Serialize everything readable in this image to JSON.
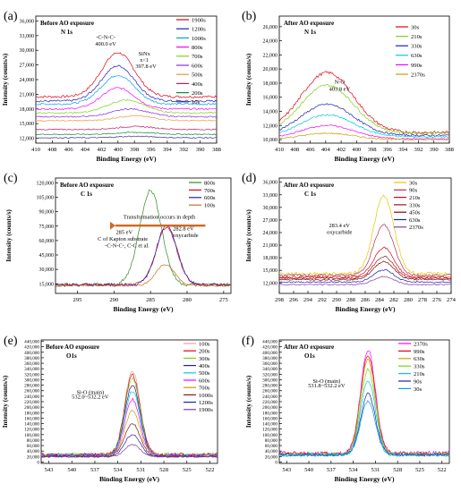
{
  "chart_data": [
    {
      "panel": "(a)",
      "type": "line",
      "annotation_title": "Before AO exposure",
      "annotation_sub": "N 1s",
      "xlabel": "Binding Energy (eV)",
      "ylabel": "Intensity (counts/s)",
      "xlim": [
        410,
        388
      ],
      "ylim": [
        11000,
        37000
      ],
      "xticks": [
        410,
        408,
        406,
        404,
        402,
        400,
        398,
        396,
        394,
        392,
        390,
        388
      ],
      "yticks": [
        12000,
        15000,
        18000,
        21000,
        24000,
        27000,
        30000,
        33000,
        36000
      ],
      "ytick_labels": [
        "12,000",
        "15,000",
        "18,000",
        "21,000",
        "24,000",
        "27,000",
        "30,000",
        "33,000",
        "36,000"
      ],
      "annotations": [
        {
          "text": "-C-N-C-",
          "x": 401.5,
          "y": 32300
        },
        {
          "text": "400.0 eV",
          "x": 401.5,
          "y": 31000
        },
        {
          "text": "SiNx",
          "x": 396.8,
          "y": 28900
        },
        {
          "text": "x<1",
          "x": 396.8,
          "y": 27700
        },
        {
          "text": "397.8 eV",
          "x": 396.6,
          "y": 26400
        }
      ],
      "series": [
        {
          "name": "1900s",
          "color": "#e60012",
          "baseline": 20500,
          "peak_x": 400.0,
          "amplitude": 9000,
          "width": 2.0
        },
        {
          "name": "1200s",
          "color": "#1f1fb4",
          "baseline": 19600,
          "peak_x": 400.0,
          "amplitude": 7200,
          "width": 2.0
        },
        {
          "name": "1000s",
          "color": "#00a0e9",
          "baseline": 19000,
          "peak_x": 400.0,
          "amplitude": 5900,
          "width": 2.0
        },
        {
          "name": "800s",
          "color": "#ff00ff",
          "baseline": 18000,
          "peak_x": 400.0,
          "amplitude": 4300,
          "width": 2.0
        },
        {
          "name": "700s",
          "color": "#7cd318",
          "baseline": 17200,
          "peak_x": 399.0,
          "amplitude": 2600,
          "width": 2.2
        },
        {
          "name": "600s",
          "color": "#8a2be2",
          "baseline": 16400,
          "peak_x": 398.5,
          "amplitude": 1600,
          "width": 2.2
        },
        {
          "name": "500s",
          "color": "#e89a3c",
          "baseline": 15600,
          "peak_x": 398.0,
          "amplitude": 1000,
          "width": 2.2
        },
        {
          "name": "400s",
          "color": "#c2185b",
          "baseline": 13800,
          "peak_x": 397.8,
          "amplitude": 600,
          "width": 2.2
        },
        {
          "name": "200s",
          "color": "#0d8c3a",
          "baseline": 12800,
          "peak_x": 397.8,
          "amplitude": 400,
          "width": 2.2
        },
        {
          "name": "10s",
          "color": "#4a2a8c",
          "baseline": 12100,
          "peak_x": 397.8,
          "amplitude": 300,
          "width": 2.2
        }
      ]
    },
    {
      "panel": "(b)",
      "type": "line",
      "annotation_title": "After AO exposure",
      "annotation_sub": "N 1s",
      "xlabel": "Binding Energy (eV)",
      "ylabel": "Intensity (counts/s)",
      "xlim": [
        410,
        388
      ],
      "ylim": [
        9500,
        27500
      ],
      "xticks": [
        410,
        408,
        406,
        404,
        402,
        400,
        398,
        396,
        394,
        392,
        390,
        388
      ],
      "yticks": [
        10000,
        12000,
        14000,
        16000,
        18000,
        20000,
        22000,
        24000,
        26000
      ],
      "ytick_labels": [
        "10,000",
        "12,000",
        "14,000",
        "16,000",
        "18,000",
        "20,000",
        "22,000",
        "24,000",
        "26,000"
      ],
      "annotations": [
        {
          "text": "N-O",
          "x": 402.2,
          "y": 17900
        },
        {
          "text": "403.8 eV",
          "x": 402.2,
          "y": 16900
        }
      ],
      "series": [
        {
          "name": "30s",
          "color": "#e60012",
          "baseline": 11000,
          "peak_x": 403.8,
          "amplitude": 8500,
          "width": 3.4
        },
        {
          "name": "210s",
          "color": "#7cd318",
          "baseline": 10900,
          "peak_x": 403.8,
          "amplitude": 6800,
          "width": 3.4
        },
        {
          "name": "330s",
          "color": "#1f1fb4",
          "baseline": 10600,
          "peak_x": 403.8,
          "amplitude": 4400,
          "width": 3.4
        },
        {
          "name": "630s",
          "color": "#00c8e6",
          "baseline": 10400,
          "peak_x": 403.8,
          "amplitude": 3100,
          "width": 3.4
        },
        {
          "name": "990s",
          "color": "#ff00ff",
          "baseline": 10100,
          "peak_x": 403.8,
          "amplitude": 1900,
          "width": 3.4
        },
        {
          "name": "2370s",
          "color": "#c8a000",
          "baseline": 10000,
          "peak_x": 403.8,
          "amplitude": 900,
          "width": 3.4
        }
      ]
    },
    {
      "panel": "(c)",
      "type": "line",
      "annotation_title": "Before AO exposure",
      "annotation_sub": "C 1s",
      "xlabel": "Binding Energy (eV)",
      "ylabel": "Intensity (counts/s)",
      "xlim": [
        298,
        274
      ],
      "ylim": [
        5000,
        125000
      ],
      "xticks": [
        295,
        290,
        285,
        280,
        275
      ],
      "yticks": [
        15000,
        30000,
        45000,
        60000,
        75000,
        90000,
        105000,
        120000
      ],
      "ytick_labels": [
        "15,000",
        "30,000",
        "45,000",
        "60,000",
        "75,000",
        "90,000",
        "105,000",
        "120,000"
      ],
      "annotations": [
        {
          "text": "Transformation occurs in depth",
          "x": 283.8,
          "y": 82500
        },
        {
          "text": "285 eV",
          "x": 288.6,
          "y": 67000
        },
        {
          "text": "C of Kapton substrate",
          "x": 288.8,
          "y": 60000
        },
        {
          "text": "-C-N-C-, C-C et al.",
          "x": 288.2,
          "y": 53000
        },
        {
          "text": "282.8 eV",
          "x": 280.5,
          "y": 70500
        },
        {
          "text": "oxycarbide",
          "x": 280.2,
          "y": 63500
        }
      ],
      "series": [
        {
          "name": "800s",
          "color": "#2e8b22",
          "baseline": 14000,
          "peak_x": 285.0,
          "amplitude": 98000,
          "width": 1.5
        },
        {
          "name": "700s",
          "color": "#e60012",
          "baseline": 14000,
          "peak_x": 282.8,
          "amplitude": 60000,
          "width": 1.4
        },
        {
          "name": "600s",
          "color": "#1f1fb4",
          "baseline": 14000,
          "peak_x": 282.8,
          "amplitude": 62000,
          "width": 1.4
        },
        {
          "name": "100s",
          "color": "#d2691e",
          "baseline": 13000,
          "peak_x": 283.0,
          "amplitude": 22000,
          "width": 1.3
        }
      ]
    },
    {
      "panel": "(d)",
      "type": "line",
      "annotation_title": "After AO exposure",
      "annotation_sub": "C 1s",
      "xlabel": "Binding Energy (eV)",
      "ylabel": "Intensity (counts/s)",
      "xlim": [
        298,
        274
      ],
      "ylim": [
        9500,
        37000
      ],
      "xticks": [
        298,
        296,
        294,
        292,
        290,
        288,
        286,
        284,
        282,
        280,
        278,
        276,
        274
      ],
      "yticks": [
        12000,
        15000,
        18000,
        21000,
        24000,
        27000,
        30000,
        33000,
        36000
      ],
      "ytick_labels": [
        "12,000",
        "15,000",
        "18,000",
        "21,000",
        "24,000",
        "27,000",
        "30,000",
        "33,000",
        "36,000"
      ],
      "annotations": [
        {
          "text": "283.4 eV",
          "x": 289.6,
          "y": 25300
        },
        {
          "text": "oxycarbide",
          "x": 289.6,
          "y": 23700
        }
      ],
      "series": [
        {
          "name": "30s",
          "color": "#e6c800",
          "baseline": 14200,
          "peak_x": 283.4,
          "amplitude": 18500,
          "width": 1.4
        },
        {
          "name": "90s",
          "color": "#b03060",
          "baseline": 13800,
          "peak_x": 283.4,
          "amplitude": 12000,
          "width": 1.4
        },
        {
          "name": "210s",
          "color": "#e60012",
          "baseline": 13400,
          "peak_x": 283.4,
          "amplitude": 7000,
          "width": 1.4
        },
        {
          "name": "330s",
          "color": "#8b1a1a",
          "baseline": 13100,
          "peak_x": 283.4,
          "amplitude": 5200,
          "width": 1.4
        },
        {
          "name": "450s",
          "color": "#8b0000",
          "baseline": 12800,
          "peak_x": 283.4,
          "amplitude": 4300,
          "width": 1.4
        },
        {
          "name": "630s",
          "color": "#1f1fb4",
          "baseline": 12200,
          "peak_x": 283.4,
          "amplitude": 2900,
          "width": 1.4
        },
        {
          "name": "2370s",
          "color": "#7b3fa0",
          "baseline": 11600,
          "peak_x": 283.4,
          "amplitude": 1900,
          "width": 1.4
        }
      ]
    },
    {
      "panel": "(e)",
      "type": "line",
      "annotation_title": "Before AO exposure",
      "annotation_sub": "O1s",
      "xlabel": "Binding Energy (eV)",
      "ylabel": "Intensity (counts/s)",
      "xlim": [
        544,
        521
      ],
      "ylim": [
        -5000,
        445000
      ],
      "xticks": [
        543,
        540,
        537,
        534,
        531,
        528,
        525,
        522
      ],
      "yticks": [
        0,
        20000,
        40000,
        60000,
        80000,
        100000,
        120000,
        140000,
        160000,
        180000,
        200000,
        220000,
        240000,
        260000,
        280000,
        300000,
        320000,
        340000,
        360000,
        380000,
        400000,
        420000,
        440000
      ],
      "ytick_labels": [
        "0",
        "20,000",
        "40,000",
        "60,000",
        "80,000",
        "100,000",
        "120,000",
        "140,000",
        "160,000",
        "180,000",
        "200,000",
        "220,000",
        "240,000",
        "260,000",
        "280,000",
        "300,000",
        "320,000",
        "340,000",
        "360,000",
        "380,000",
        "400,000",
        "420,000",
        "440,000"
      ],
      "annotations": [
        {
          "text": "Si-O (main)",
          "x": 537.6,
          "y": 248000
        },
        {
          "text": "532.0~532.2 eV",
          "x": 537.6,
          "y": 232000
        }
      ],
      "series": [
        {
          "name": "100s",
          "color": "#e8a0a0",
          "baseline": 28000,
          "peak_x": 532.1,
          "amplitude": 305000,
          "width": 1.0
        },
        {
          "name": "200s",
          "color": "#e60012",
          "baseline": 27000,
          "peak_x": 532.1,
          "amplitude": 290000,
          "width": 1.0
        },
        {
          "name": "300s",
          "color": "#7cd318",
          "baseline": 26000,
          "peak_x": 532.1,
          "amplitude": 275000,
          "width": 1.0
        },
        {
          "name": "400s",
          "color": "#1f1fb4",
          "baseline": 25000,
          "peak_x": 532.1,
          "amplitude": 255000,
          "width": 1.0
        },
        {
          "name": "500s",
          "color": "#00c8e6",
          "baseline": 24000,
          "peak_x": 532.1,
          "amplitude": 235000,
          "width": 1.0
        },
        {
          "name": "600s",
          "color": "#ff00ff",
          "baseline": 23000,
          "peak_x": 532.1,
          "amplitude": 205000,
          "width": 1.0
        },
        {
          "name": "700s",
          "color": "#c8a000",
          "baseline": 22000,
          "peak_x": 532.1,
          "amplitude": 165000,
          "width": 1.0
        },
        {
          "name": "1000s",
          "color": "#8b1a1a",
          "baseline": 21000,
          "peak_x": 532.1,
          "amplitude": 120000,
          "width": 1.0
        },
        {
          "name": "1200s",
          "color": "#1f1fb4",
          "baseline": 20000,
          "peak_x": 532.1,
          "amplitude": 80000,
          "width": 1.0
        },
        {
          "name": "1900s",
          "color": "#7b3fa0",
          "baseline": 19000,
          "peak_x": 532.1,
          "amplitude": 45000,
          "width": 1.0
        }
      ]
    },
    {
      "panel": "(f)",
      "type": "line",
      "annotation_title": "After AO exposure",
      "annotation_sub": "O1s",
      "xlabel": "Binding Energy (eV)",
      "ylabel": "Intensity (counts/s)",
      "xlim": [
        544,
        521
      ],
      "ylim": [
        -5000,
        445000
      ],
      "xticks": [
        543,
        540,
        537,
        534,
        531,
        528,
        525,
        522
      ],
      "yticks": [
        0,
        20000,
        40000,
        60000,
        80000,
        100000,
        120000,
        140000,
        160000,
        180000,
        200000,
        220000,
        240000,
        260000,
        280000,
        300000,
        320000,
        340000,
        360000,
        380000,
        400000,
        420000,
        440000
      ],
      "ytick_labels": [
        "0",
        "20,000",
        "40,000",
        "60,000",
        "80,000",
        "100,000",
        "120,000",
        "140,000",
        "160,000",
        "180,000",
        "200,000",
        "220,000",
        "240,000",
        "260,000",
        "280,000",
        "300,000",
        "320,000",
        "340,000",
        "360,000",
        "380,000",
        "400,000",
        "420,000",
        "440,000"
      ],
      "annotations": [
        {
          "text": "Si-O (main)",
          "x": 537.6,
          "y": 288000
        },
        {
          "text": "531.8~532.2 eV",
          "x": 537.6,
          "y": 272000
        }
      ],
      "series": [
        {
          "name": "2370s",
          "color": "#ff00ff",
          "baseline": 32000,
          "peak_x": 532.0,
          "amplitude": 378000,
          "width": 1.0
        },
        {
          "name": "990s",
          "color": "#e60012",
          "baseline": 30000,
          "peak_x": 532.0,
          "amplitude": 362000,
          "width": 1.0
        },
        {
          "name": "630s",
          "color": "#c8a000",
          "baseline": 29000,
          "peak_x": 532.0,
          "amplitude": 343000,
          "width": 1.0
        },
        {
          "name": "330s",
          "color": "#7cd318",
          "baseline": 28000,
          "peak_x": 532.0,
          "amplitude": 310000,
          "width": 1.0
        },
        {
          "name": "210s",
          "color": "#00c8e6",
          "baseline": 27000,
          "peak_x": 532.0,
          "amplitude": 270000,
          "width": 1.0
        },
        {
          "name": "90s",
          "color": "#1f1fb4",
          "baseline": 26000,
          "peak_x": 532.0,
          "amplitude": 222000,
          "width": 1.0
        },
        {
          "name": "30s",
          "color": "#00a0e9",
          "baseline": 25000,
          "peak_x": 532.0,
          "amplitude": 195000,
          "width": 1.0
        }
      ]
    }
  ]
}
